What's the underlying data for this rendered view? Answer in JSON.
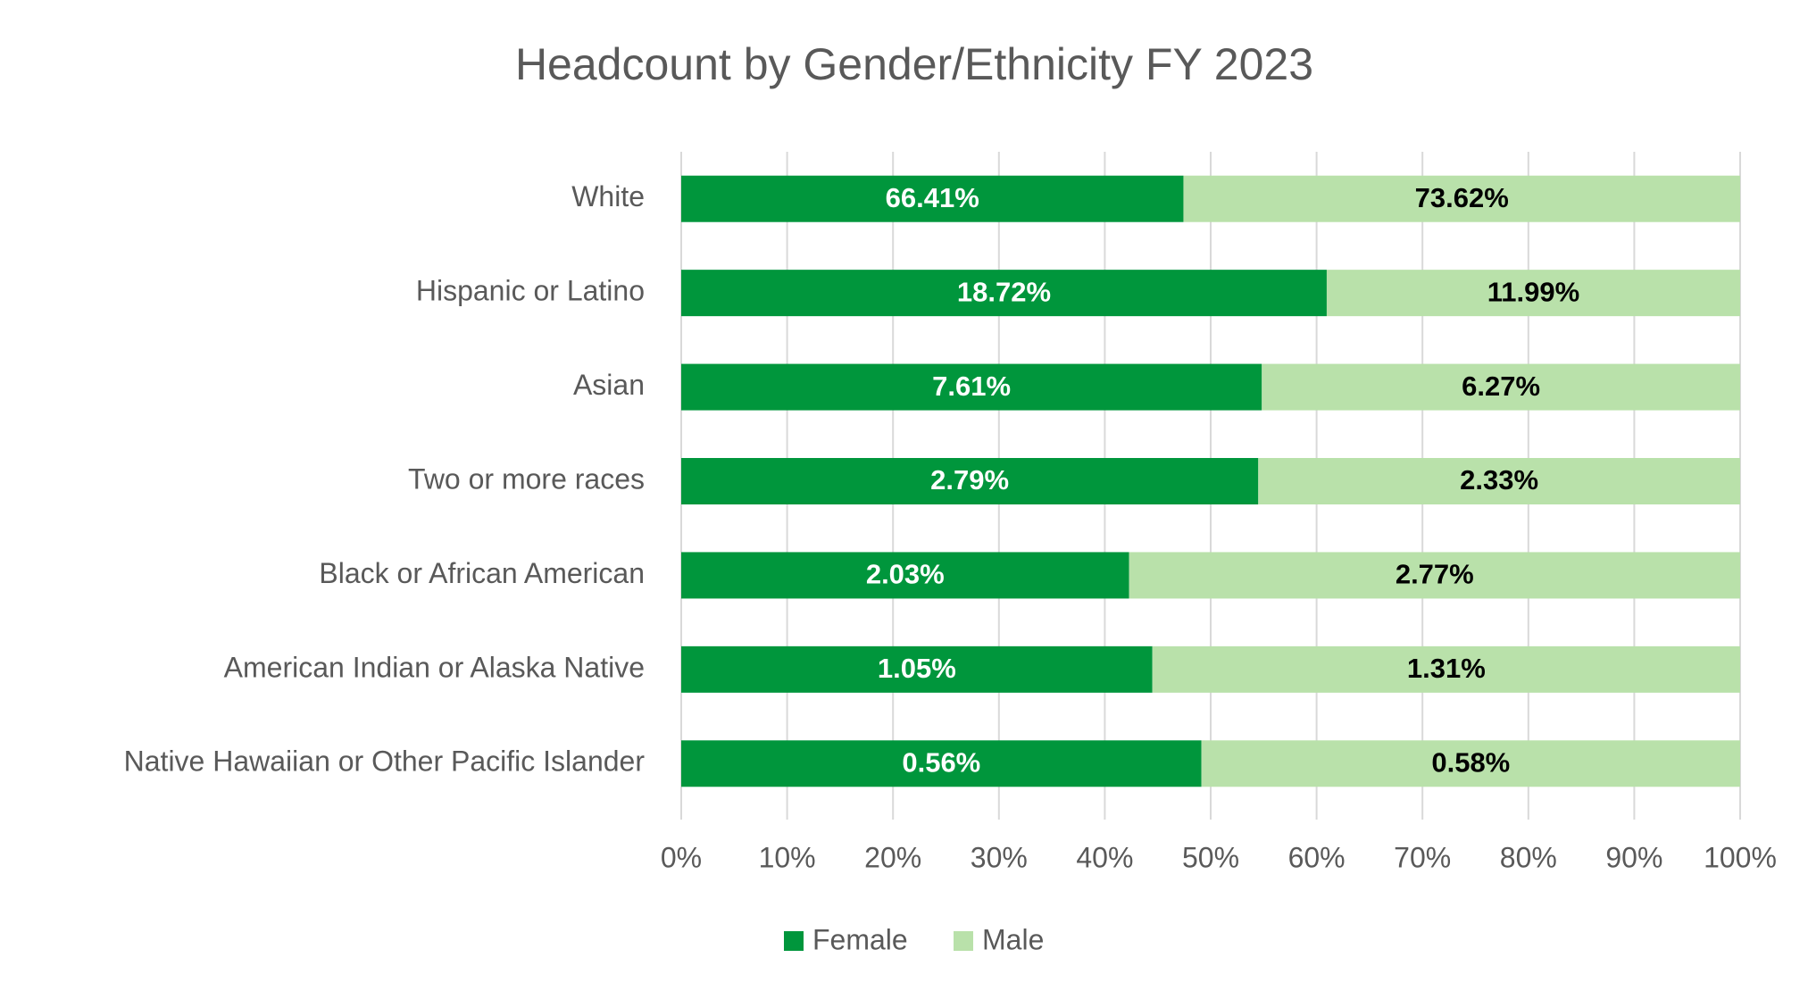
{
  "chart_data": {
    "type": "bar",
    "orientation": "horizontal",
    "stacked": "percent",
    "title": "Headcount by Gender/Ethnicity FY 2023",
    "categories": [
      "White",
      "Hispanic or Latino",
      "Asian",
      "Two or more races",
      "Black or African American",
      "American Indian or Alaska Native",
      "Native Hawaiian or Other Pacific Islander"
    ],
    "series": [
      {
        "name": "Female",
        "color": "#00963c",
        "label_color": "#ffffff",
        "values": [
          66.41,
          18.72,
          7.61,
          2.79,
          2.03,
          1.05,
          0.56
        ],
        "value_labels": [
          "66.41%",
          "18.72%",
          "7.61%",
          "2.79%",
          "2.03%",
          "1.05%",
          "0.56%"
        ]
      },
      {
        "name": "Male",
        "color": "#b9e1aa",
        "label_color": "#000000",
        "values": [
          73.62,
          11.99,
          6.27,
          2.33,
          2.77,
          1.31,
          0.58
        ],
        "value_labels": [
          "73.62%",
          "11.99%",
          "6.27%",
          "2.33%",
          "2.77%",
          "1.31%",
          "0.58%"
        ]
      }
    ],
    "xlim": [
      0,
      100
    ],
    "xticks": [
      {
        "value": 0,
        "label": "0%"
      },
      {
        "value": 10,
        "label": "10%"
      },
      {
        "value": 20,
        "label": "20%"
      },
      {
        "value": 30,
        "label": "30%"
      },
      {
        "value": 40,
        "label": "40%"
      },
      {
        "value": 50,
        "label": "50%"
      },
      {
        "value": 60,
        "label": "60%"
      },
      {
        "value": 70,
        "label": "70%"
      },
      {
        "value": 80,
        "label": "80%"
      },
      {
        "value": 90,
        "label": "90%"
      },
      {
        "value": 100,
        "label": "100%"
      }
    ],
    "grid": true,
    "legend": "bottom"
  }
}
